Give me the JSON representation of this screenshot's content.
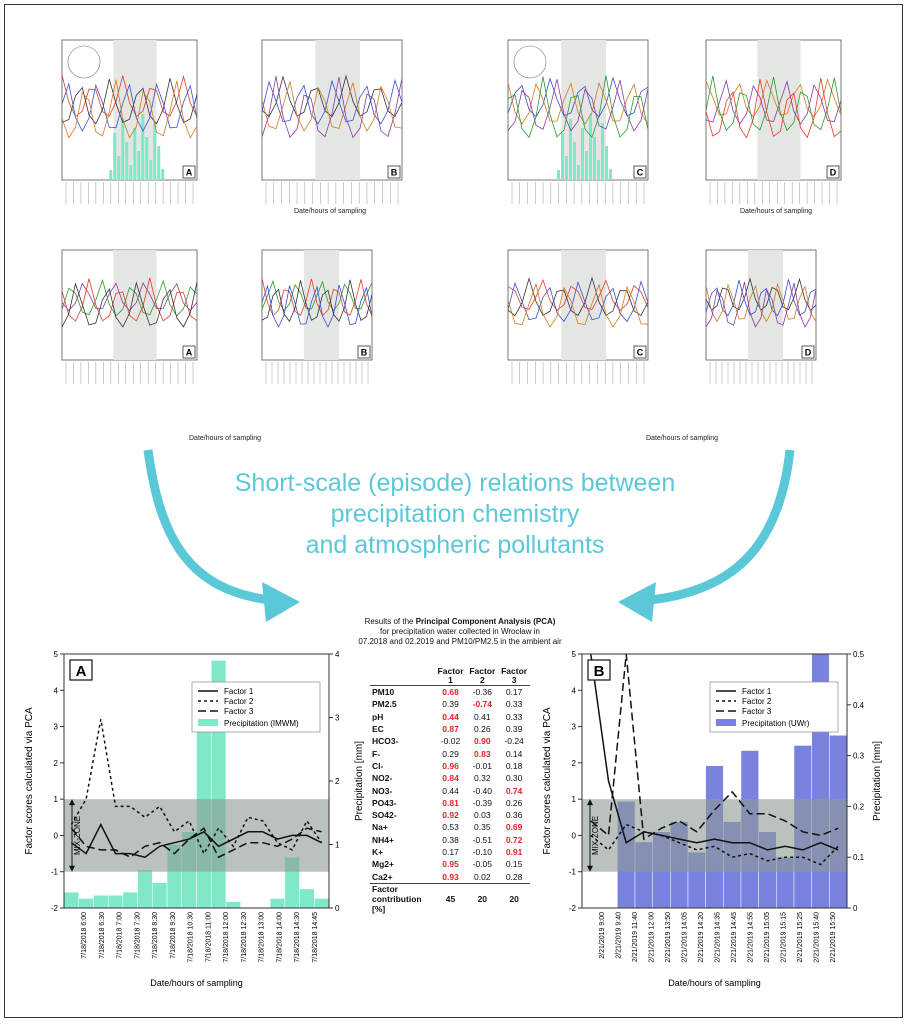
{
  "headline": {
    "line1": "Short-scale (episode) relations between",
    "line2": "precipitation chemistry",
    "line3": "and atmospheric pollutants"
  },
  "pca": {
    "title_pre": "Results of the ",
    "title_bold": "Principal Component Analysis (PCA)",
    "title_line2": "for precipitation water collected in Wrocław in",
    "title_line3": "07.2018 and 02.2019 and PM10/PM2.5 in the ambient air",
    "headers": [
      "Factor 1",
      "Factor 2",
      "Factor 3"
    ],
    "rows": [
      {
        "label": "PM10",
        "values": [
          "0.68",
          "-0.36",
          "0.17"
        ],
        "hi": [
          true,
          false,
          false
        ]
      },
      {
        "label": "PM2.5",
        "values": [
          "0.39",
          "-0.74",
          "0.33"
        ],
        "hi": [
          false,
          true,
          false
        ]
      },
      {
        "label": "pH",
        "values": [
          "0.44",
          "0.41",
          "0.33"
        ],
        "hi": [
          true,
          false,
          false
        ]
      },
      {
        "label": "EC",
        "values": [
          "0.87",
          "0.26",
          "0.39"
        ],
        "hi": [
          true,
          false,
          false
        ]
      },
      {
        "label": "HCO3-",
        "values": [
          "-0.02",
          "0.90",
          "-0.24"
        ],
        "hi": [
          false,
          true,
          false
        ]
      },
      {
        "label": "F-",
        "values": [
          "0.29",
          "0.83",
          "0.14"
        ],
        "hi": [
          false,
          true,
          false
        ]
      },
      {
        "label": "Cl-",
        "values": [
          "0.96",
          "-0.01",
          "0.18"
        ],
        "hi": [
          true,
          false,
          false
        ]
      },
      {
        "label": "NO2-",
        "values": [
          "0.84",
          "0.32",
          "0.30"
        ],
        "hi": [
          true,
          false,
          false
        ]
      },
      {
        "label": "NO3-",
        "values": [
          "0.44",
          "-0.40",
          "0.74"
        ],
        "hi": [
          false,
          false,
          true
        ]
      },
      {
        "label": "PO43-",
        "values": [
          "0.81",
          "-0.39",
          "0.26"
        ],
        "hi": [
          true,
          false,
          false
        ]
      },
      {
        "label": "SO42-",
        "values": [
          "0.92",
          "0.03",
          "0.36"
        ],
        "hi": [
          true,
          false,
          false
        ]
      },
      {
        "label": "Na+",
        "values": [
          "0.53",
          "0.35",
          "0.69"
        ],
        "hi": [
          false,
          false,
          true
        ]
      },
      {
        "label": "NH4+",
        "values": [
          "0.38",
          "-0.51",
          "0.72"
        ],
        "hi": [
          false,
          false,
          true
        ]
      },
      {
        "label": "K+",
        "values": [
          "0.17",
          "-0.10",
          "0.91"
        ],
        "hi": [
          false,
          false,
          true
        ]
      },
      {
        "label": "Mg2+",
        "values": [
          "0.95",
          "-0.05",
          "0.15"
        ],
        "hi": [
          true,
          false,
          false
        ]
      },
      {
        "label": "Ca2+",
        "values": [
          "0.93",
          "0.02",
          "0.28"
        ],
        "hi": [
          true,
          false,
          false
        ]
      }
    ],
    "contribution_label": "Factor contribution [%]",
    "contribution": [
      "45",
      "20",
      "20"
    ]
  },
  "mini_charts": {
    "x_caption": "Date/hours of sampling",
    "panel_letters": [
      "A",
      "B",
      "C",
      "D",
      "A",
      "B",
      "C",
      "D"
    ]
  },
  "chart_data": [
    {
      "type": "bar",
      "panel": "A",
      "title": "",
      "xlabel": "Date/hours of sampling",
      "ylabel": "Factor scores calculated via PCA",
      "y2label": "Precipitation [mm]",
      "ylim": [
        -2,
        5
      ],
      "y2lim": [
        0,
        4
      ],
      "zone_label": "MIX-ZONE",
      "zone": [
        -1,
        1
      ],
      "tick_labels": [
        "7/18/2018 6:00",
        "7/18/2018 6:30",
        "7/18/2018 7:00",
        "7/18/2018 7:30",
        "7/18/2018 8:30",
        "7/18/2018 9:30",
        "7/18/2018 10:30",
        "7/18/2018 11:00",
        "7/18/2018 12:00",
        "7/18/2018 12:30",
        "7/18/2018 13:00",
        "7/18/2018 14:00",
        "7/18/2018 14:30",
        "7/18/2018 14:45"
      ],
      "precip_values": [
        0.25,
        0.15,
        0.2,
        0.2,
        0.25,
        0.6,
        0.4,
        1.0,
        1.2,
        3.5,
        3.9,
        0.1,
        0.0,
        0.0,
        0.15,
        0.8,
        0.3,
        0.15
      ],
      "series": [
        {
          "name": "Factor 1",
          "values": [
            -0.2,
            -0.5,
            0.3,
            -0.5,
            -0.5,
            -0.6,
            -0.3,
            -0.2,
            -0.1,
            0.1,
            -0.3,
            -0.1,
            0.1,
            0.1,
            -0.1,
            0.0,
            0.0,
            -0.2
          ]
        },
        {
          "name": "Factor 2",
          "values": [
            0.3,
            1.0,
            3.2,
            0.8,
            0.8,
            0.5,
            0.8,
            0.1,
            0.4,
            -0.5,
            0.2,
            -0.3,
            0.5,
            0.4,
            -0.2,
            -0.4,
            0.4,
            -0.2
          ]
        },
        {
          "name": "Factor 3",
          "values": [
            0.2,
            -0.3,
            -0.4,
            -0.4,
            -0.6,
            -0.3,
            -0.2,
            -0.5,
            -0.1,
            0.2,
            -0.6,
            -0.4,
            -0.2,
            -0.2,
            -0.3,
            -0.1,
            0.2,
            0.1
          ]
        }
      ],
      "precip_name": "Precipitation (IMWM)",
      "colors": {
        "precip": "#7fe8c8",
        "zone": "#8d9a92"
      }
    },
    {
      "type": "bar",
      "panel": "B",
      "title": "",
      "xlabel": "Date/hours of sampling",
      "ylabel": "Factor scores calculated via PCA",
      "y2label": "Precipitation [mm]",
      "ylim": [
        -2,
        5
      ],
      "y2lim": [
        0,
        0.5
      ],
      "zone_label": "MIX-ZONE",
      "zone": [
        -1,
        1
      ],
      "tick_labels": [
        "2/21/2019 9:00",
        "2/21/2019 9:40",
        "2/21/2019 11:40",
        "2/21/2019 12:00",
        "2/21/2019 13:50",
        "2/21/2019 14:05",
        "2/21/2019 14:20",
        "2/21/2019 14:35",
        "2/21/2019 14:45",
        "2/21/2019 14:55",
        "2/21/2019 15:05",
        "2/21/2019 15:15",
        "2/21/2019 15:25",
        "2/21/2019 15:40",
        "2/21/2019 15:50"
      ],
      "precip_values": [
        0.0,
        0.0,
        0.21,
        0.13,
        0.15,
        0.17,
        0.11,
        0.28,
        0.17,
        0.31,
        0.15,
        0.1,
        0.32,
        0.5,
        0.34
      ],
      "series": [
        {
          "name": "Factor 1",
          "values": [
            5.0,
            1.5,
            -0.2,
            0.1,
            0.0,
            -0.1,
            -0.2,
            -0.1,
            -0.2,
            -0.2,
            -0.4,
            -0.3,
            -0.4,
            -0.2,
            -0.4
          ]
        },
        {
          "name": "Factor 2",
          "values": [
            0.0,
            -0.4,
            0.3,
            0.1,
            0.0,
            -0.2,
            -0.4,
            -0.3,
            -0.6,
            -0.5,
            -0.7,
            -0.6,
            -0.6,
            -0.8,
            -0.3
          ]
        },
        {
          "name": "Factor 3",
          "values": [
            0.4,
            0.0,
            5.0,
            -0.1,
            0.2,
            0.4,
            0.1,
            0.7,
            1.2,
            0.6,
            0.6,
            0.4,
            0.1,
            0.0,
            0.2
          ]
        }
      ],
      "precip_name": "Precipitation (UWr)",
      "colors": {
        "precip": "#7a82e0",
        "zone": "#8d9a92"
      }
    }
  ]
}
